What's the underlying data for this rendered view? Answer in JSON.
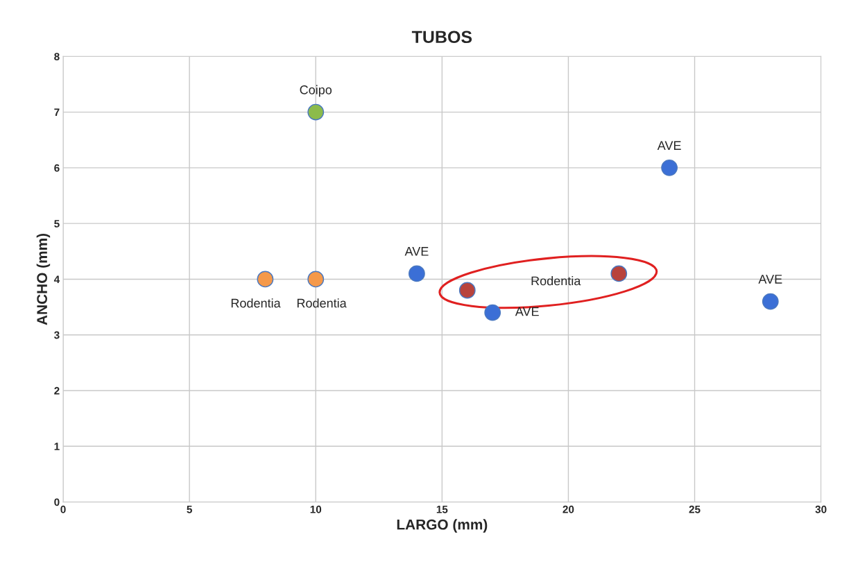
{
  "chart_data": {
    "type": "scatter",
    "title": "TUBOS",
    "xlabel": "LARGO (mm)",
    "ylabel": "ANCHO (mm)",
    "series": [
      {
        "color": "#3b6fd6",
        "x": [
          14,
          17,
          24,
          28
        ],
        "values": [
          4.1,
          3.4,
          6.0,
          3.6
        ]
      },
      {
        "color": "#f5994a",
        "x": [
          8,
          10
        ],
        "values": [
          4.0,
          4.0
        ]
      },
      {
        "color": "#8cbb4b",
        "x": [
          10
        ],
        "values": [
          7.0
        ]
      },
      {
        "color": "#b8433c",
        "x": [
          16,
          22
        ],
        "values": [
          3.8,
          4.1
        ]
      }
    ],
    "annotations": [
      {
        "text": "Coipo",
        "x": 10,
        "y": 7.0
      },
      {
        "text": "AVE",
        "x": 14,
        "y": 4.1
      },
      {
        "text": "AVE",
        "x": 24,
        "y": 6.0
      },
      {
        "text": "AVE",
        "x": 28,
        "y": 3.6
      },
      {
        "text": "AVE",
        "x": 17,
        "y": 3.4
      },
      {
        "text": "Rodentia",
        "x": 8,
        "y": 4.0
      },
      {
        "text": "Rodentia",
        "x": 10,
        "y": 4.0
      },
      "Rodentia"
    ],
    "xlim": [
      0,
      30
    ],
    "xticks": [
      0,
      5,
      10,
      15,
      20,
      25,
      30
    ],
    "ylim": [
      0,
      8
    ],
    "yticks": [
      0,
      1,
      2,
      3,
      4,
      5,
      6,
      7,
      8
    ],
    "grid": true,
    "marker": "circle"
  }
}
